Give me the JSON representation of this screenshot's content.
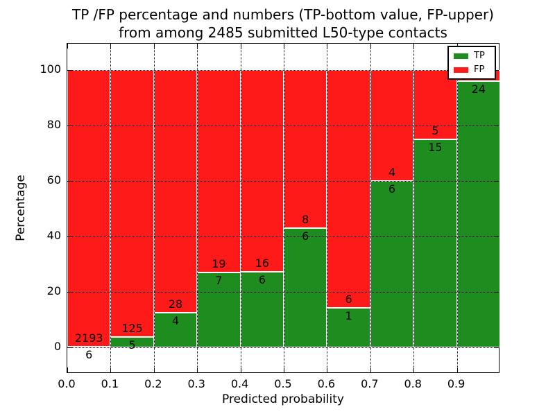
{
  "title": {
    "line1": "TP /FP percentage and numbers (TP-bottom value, FP-upper)",
    "line2": "from among 2485 submitted L50-type contacts"
  },
  "chart_data": {
    "type": "bar",
    "stacked": true,
    "title": "TP /FP percentage and numbers (TP-bottom value, FP-upper) from among 2485 submitted L50-type contacts",
    "total_submitted_contacts": 2485,
    "xlabel": "Predicted probability",
    "ylabel": "Percentage",
    "xlim": [
      0.0,
      1.0
    ],
    "ylim": [
      -9.5,
      109.5
    ],
    "grid": "dotted, both axes",
    "colors": {
      "tp": "#1f8c1f",
      "fp": "#ff1a1a",
      "grid": "#000000",
      "bar_edge": "#ffffff"
    },
    "xticks": {
      "values": [
        0.0,
        0.1,
        0.2,
        0.3,
        0.4,
        0.5,
        0.6,
        0.7,
        0.8,
        0.9
      ],
      "labels": [
        "0.0",
        "0.1",
        "0.2",
        "0.3",
        "0.4",
        "0.5",
        "0.6",
        "0.7",
        "0.8",
        "0.9"
      ]
    },
    "yticks": {
      "values": [
        0,
        20,
        40,
        60,
        80,
        100
      ],
      "labels": [
        "0",
        "20",
        "40",
        "60",
        "80",
        "100"
      ]
    },
    "legend": {
      "position": "upper right",
      "entries": [
        {
          "label": "TP",
          "color": "#1f8c1f"
        },
        {
          "label": "FP",
          "color": "#ff1a1a"
        }
      ]
    },
    "bars": [
      {
        "range": [
          0.0,
          0.1
        ],
        "tp_count": 6,
        "fp_count": 2193,
        "tp_label": "6",
        "fp_label": "2193",
        "tp_pct": 0.27,
        "fp_pct": 99.73
      },
      {
        "range": [
          0.1,
          0.2
        ],
        "tp_count": 5,
        "fp_count": 125,
        "tp_label": "5",
        "fp_label": "125",
        "tp_pct": 3.85,
        "fp_pct": 96.15
      },
      {
        "range": [
          0.2,
          0.3
        ],
        "tp_count": 4,
        "fp_count": 28,
        "tp_label": "4",
        "fp_label": "28",
        "tp_pct": 12.5,
        "fp_pct": 87.5
      },
      {
        "range": [
          0.3,
          0.4
        ],
        "tp_count": 7,
        "fp_count": 19,
        "tp_label": "7",
        "fp_label": "19",
        "tp_pct": 26.9,
        "fp_pct": 73.1
      },
      {
        "range": [
          0.4,
          0.5
        ],
        "tp_count": 6,
        "fp_count": 16,
        "tp_label": "6",
        "fp_label": "16",
        "tp_pct": 27.3,
        "fp_pct": 72.7
      },
      {
        "range": [
          0.5,
          0.6
        ],
        "tp_count": 6,
        "fp_count": 8,
        "tp_label": "6",
        "fp_label": "8",
        "tp_pct": 42.9,
        "fp_pct": 57.1
      },
      {
        "range": [
          0.6,
          0.7
        ],
        "tp_count": 1,
        "fp_count": 6,
        "tp_label": "1",
        "fp_label": "6",
        "tp_pct": 14.3,
        "fp_pct": 85.7
      },
      {
        "range": [
          0.7,
          0.8
        ],
        "tp_count": 6,
        "fp_count": 4,
        "tp_label": "6",
        "fp_label": "4",
        "tp_pct": 60.0,
        "fp_pct": 40.0
      },
      {
        "range": [
          0.8,
          0.9
        ],
        "tp_count": 15,
        "fp_count": 5,
        "tp_label": "15",
        "fp_label": "5",
        "tp_pct": 75.0,
        "fp_pct": 25.0
      },
      {
        "range": [
          0.9,
          1.0
        ],
        "tp_count": 24,
        "tp_label": "24",
        "fp_label": "",
        "tp_pct": 96.0,
        "fp_pct": 4.0
      }
    ]
  }
}
